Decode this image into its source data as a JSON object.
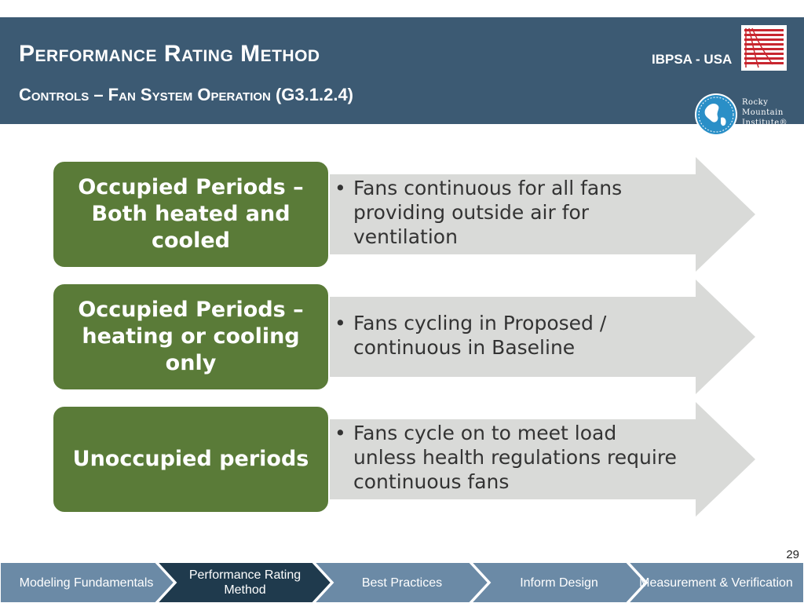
{
  "header": {
    "title": "Performance Rating Method",
    "subtitle": "Controls – Fan System Operation (G3.1.2.4)",
    "ibpsa_logo_text": "IBPSA - USA",
    "rmi_logo_text": [
      "Rocky",
      "Mountain",
      "Institute®"
    ],
    "colors": {
      "band": "#3c5a73",
      "logo_red": "#c8262f"
    }
  },
  "rows": [
    {
      "label": "Occupied Periods – Both heated and cooled",
      "bullet": "Fans continuous for all fans providing outside air for ventilation"
    },
    {
      "label": "Occupied Periods – heating or cooling only",
      "bullet": "Fans cycling in Proposed / continuous in Baseline"
    },
    {
      "label": "Unoccupied periods",
      "bullet": "Fans cycle on to meet load unless health regulations require continuous fans"
    }
  ],
  "row_colors": {
    "label_fill": "#5a7b38",
    "arrow_fill": "#d9dad8"
  },
  "page_number": "29",
  "nav": {
    "items": [
      {
        "label": "Modeling Fundamentals",
        "active": false
      },
      {
        "label": "Performance Rating Method",
        "active": true
      },
      {
        "label": "Best Practices",
        "active": false
      },
      {
        "label": "Inform Design",
        "active": false
      },
      {
        "label": "Measurement & Verification",
        "active": false
      }
    ],
    "colors": {
      "inactive": "#6b8aa6",
      "active": "#1f3a4d"
    }
  }
}
